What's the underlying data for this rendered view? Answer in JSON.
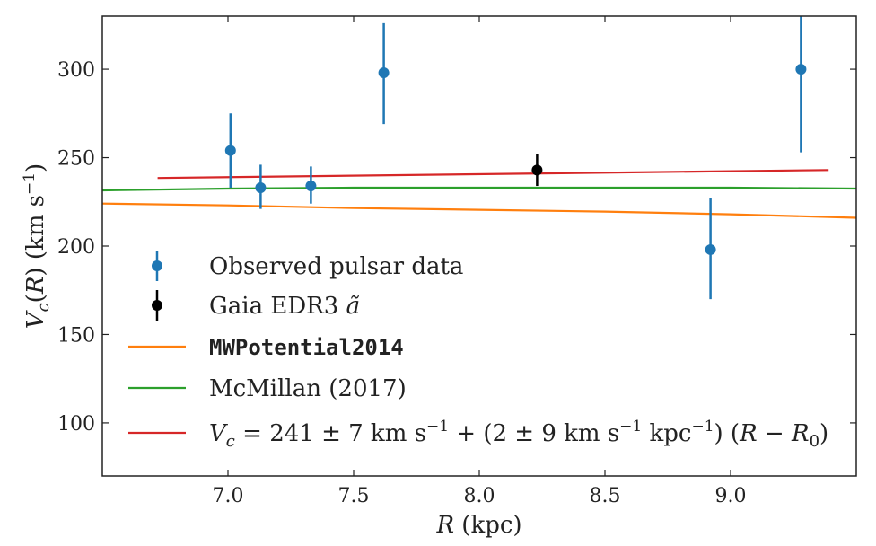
{
  "chart_data": {
    "type": "scatter",
    "xlabel": "R (kpc)",
    "ylabel": "V_c(R) (km s^-1)",
    "xlim": [
      6.5,
      9.5
    ],
    "ylim": [
      70,
      330
    ],
    "xticks": [
      7.0,
      7.5,
      8.0,
      8.5,
      9.0
    ],
    "xtick_labels": [
      "7.0",
      "7.5",
      "8.0",
      "8.5",
      "9.0"
    ],
    "yticks": [
      100,
      150,
      200,
      250,
      300
    ],
    "ytick_labels": [
      "100",
      "150",
      "200",
      "250",
      "300"
    ],
    "grid": false,
    "legend_position": "lower-left",
    "series": [
      {
        "name": "Observed pulsar data",
        "kind": "errorbar",
        "color": "#1f77b4",
        "points": [
          {
            "x": 7.01,
            "y": 254,
            "ylow": 233,
            "yhigh": 275
          },
          {
            "x": 7.13,
            "y": 233,
            "ylow": 221,
            "yhigh": 246
          },
          {
            "x": 7.33,
            "y": 234,
            "ylow": 224,
            "yhigh": 245
          },
          {
            "x": 7.62,
            "y": 298,
            "ylow": 269,
            "yhigh": 326
          },
          {
            "x": 8.92,
            "y": 198,
            "ylow": 170,
            "yhigh": 227
          },
          {
            "x": 9.28,
            "y": 300,
            "ylow": 253,
            "yhigh": 331
          }
        ]
      },
      {
        "name": "Gaia EDR3 ã",
        "kind": "errorbar",
        "color": "#000000",
        "points": [
          {
            "x": 8.23,
            "y": 243,
            "ylow": 234,
            "yhigh": 252
          }
        ]
      },
      {
        "name": "MWPotential2014",
        "kind": "line",
        "color": "#ff7f0e",
        "x": [
          6.5,
          7.0,
          7.5,
          8.0,
          8.5,
          9.0,
          9.5
        ],
        "y": [
          224,
          223,
          221.5,
          220.5,
          219.5,
          218,
          216
        ]
      },
      {
        "name": "McMillan (2017)",
        "kind": "line",
        "color": "#2ca02c",
        "x": [
          6.5,
          7.0,
          7.5,
          8.0,
          8.5,
          9.0,
          9.5
        ],
        "y": [
          231.5,
          232.5,
          233,
          233,
          233,
          233,
          232.5
        ]
      },
      {
        "name": "V_c = 241 ± 7 km s^-1 + (2 ± 9 km s^-1 kpc^-1) (R − R_0)",
        "kind": "line",
        "color": "#d62728",
        "x": [
          6.72,
          9.39
        ],
        "y": [
          238.5,
          243
        ]
      }
    ]
  }
}
